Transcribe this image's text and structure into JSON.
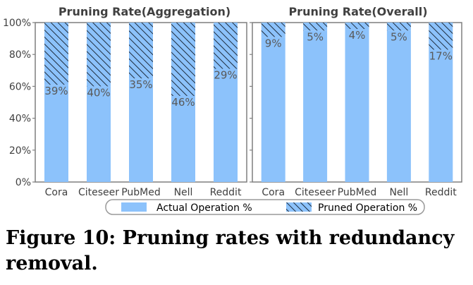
{
  "chart_data": [
    {
      "type": "bar",
      "stacked": true,
      "title": "Pruning Rate(Aggregation)",
      "categories": [
        "Cora",
        "Citeseer",
        "PubMed",
        "Nell",
        "Reddit"
      ],
      "series": [
        {
          "name": "Actual Operation %",
          "values": [
            61,
            60,
            65,
            54,
            71
          ]
        },
        {
          "name": "Pruned Operation %",
          "values": [
            39,
            40,
            35,
            46,
            29
          ]
        }
      ],
      "data_labels": [
        "39%",
        "40%",
        "35%",
        "46%",
        "29%"
      ],
      "ylim": [
        0,
        100
      ],
      "yticks": [
        "0%",
        "20%",
        "40%",
        "60%",
        "80%",
        "100%"
      ]
    },
    {
      "type": "bar",
      "stacked": true,
      "title": "Pruning Rate(Overall)",
      "categories": [
        "Cora",
        "Citeseer",
        "PubMed",
        "Nell",
        "Reddit"
      ],
      "series": [
        {
          "name": "Actual Operation %",
          "values": [
            91,
            95,
            96,
            95,
            83
          ]
        },
        {
          "name": "Pruned Operation %",
          "values": [
            9,
            5,
            4,
            5,
            17
          ]
        }
      ],
      "data_labels": [
        "9%",
        "5%",
        "4%",
        "5%",
        "17%"
      ],
      "ylim": [
        0,
        100
      ],
      "yticks": [
        "0%",
        "20%",
        "40%",
        "60%",
        "80%",
        "100%"
      ]
    }
  ],
  "legend": {
    "placement": "bottom",
    "items": [
      {
        "label": "Actual Operation %",
        "style": "solid"
      },
      {
        "label": "Pruned Operation %",
        "style": "hatched"
      }
    ]
  },
  "caption": "Figure 10: Pruning rates with redundancy removal.",
  "colors": {
    "actual": "#8cc2fb",
    "hatch": "#1f2d3d",
    "axis": "#7f7f7f",
    "text": "#404040",
    "label": "#595959"
  }
}
